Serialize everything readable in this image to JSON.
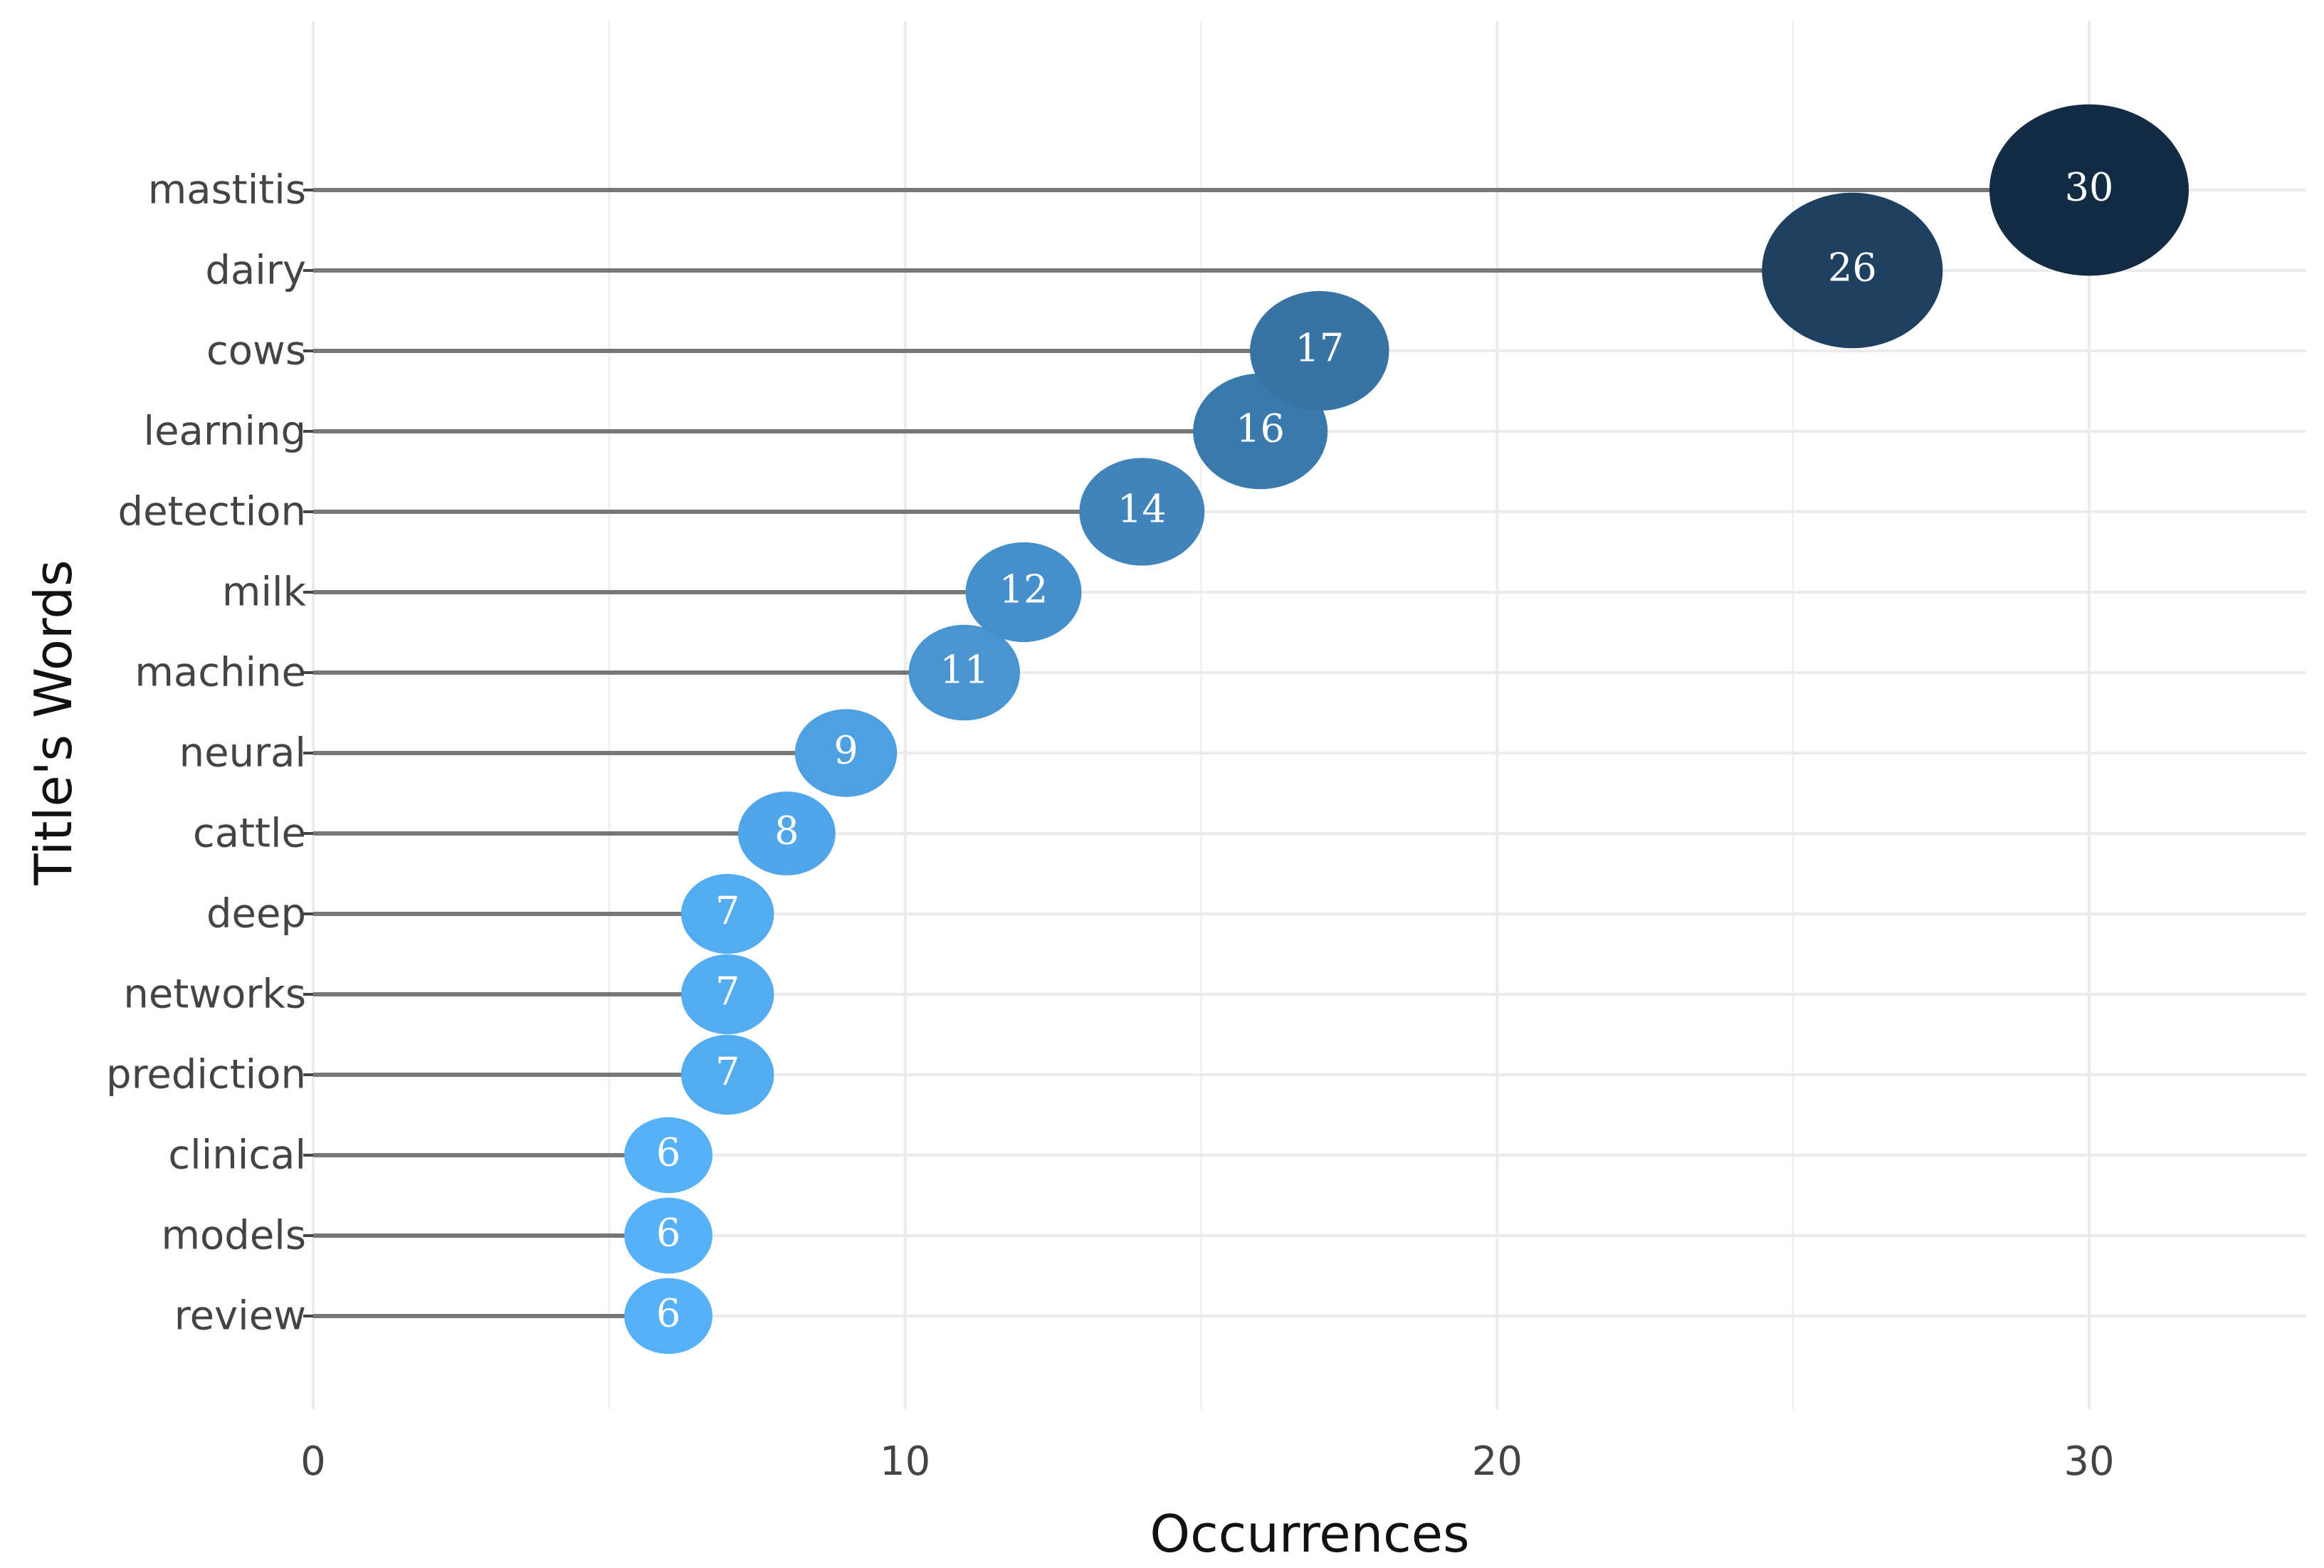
{
  "chart_data": {
    "type": "scatter",
    "subtype": "lollipop",
    "title": "",
    "xlabel": "Occurrences",
    "ylabel": "Title's Words",
    "xlim": [
      0,
      34
    ],
    "x_ticks": [
      0,
      10,
      20,
      30
    ],
    "grid": true,
    "legend": "none",
    "categories": [
      "mastitis",
      "dairy",
      "cows",
      "learning",
      "detection",
      "milk",
      "machine",
      "neural",
      "cattle",
      "deep",
      "networks",
      "prediction",
      "clinical",
      "models",
      "review"
    ],
    "values": [
      30,
      26,
      17,
      16,
      14,
      12,
      11,
      9,
      8,
      7,
      7,
      7,
      6,
      6,
      6
    ],
    "data_labels": [
      "30",
      "26",
      "17",
      "16",
      "14",
      "12",
      "11",
      "9",
      "8",
      "7",
      "7",
      "7",
      "6",
      "6",
      "6"
    ],
    "color_scale": {
      "low": "#56B1F7",
      "high": "#132B43"
    },
    "stem_color": "#777777",
    "grid_color": "#EBEBEB"
  }
}
